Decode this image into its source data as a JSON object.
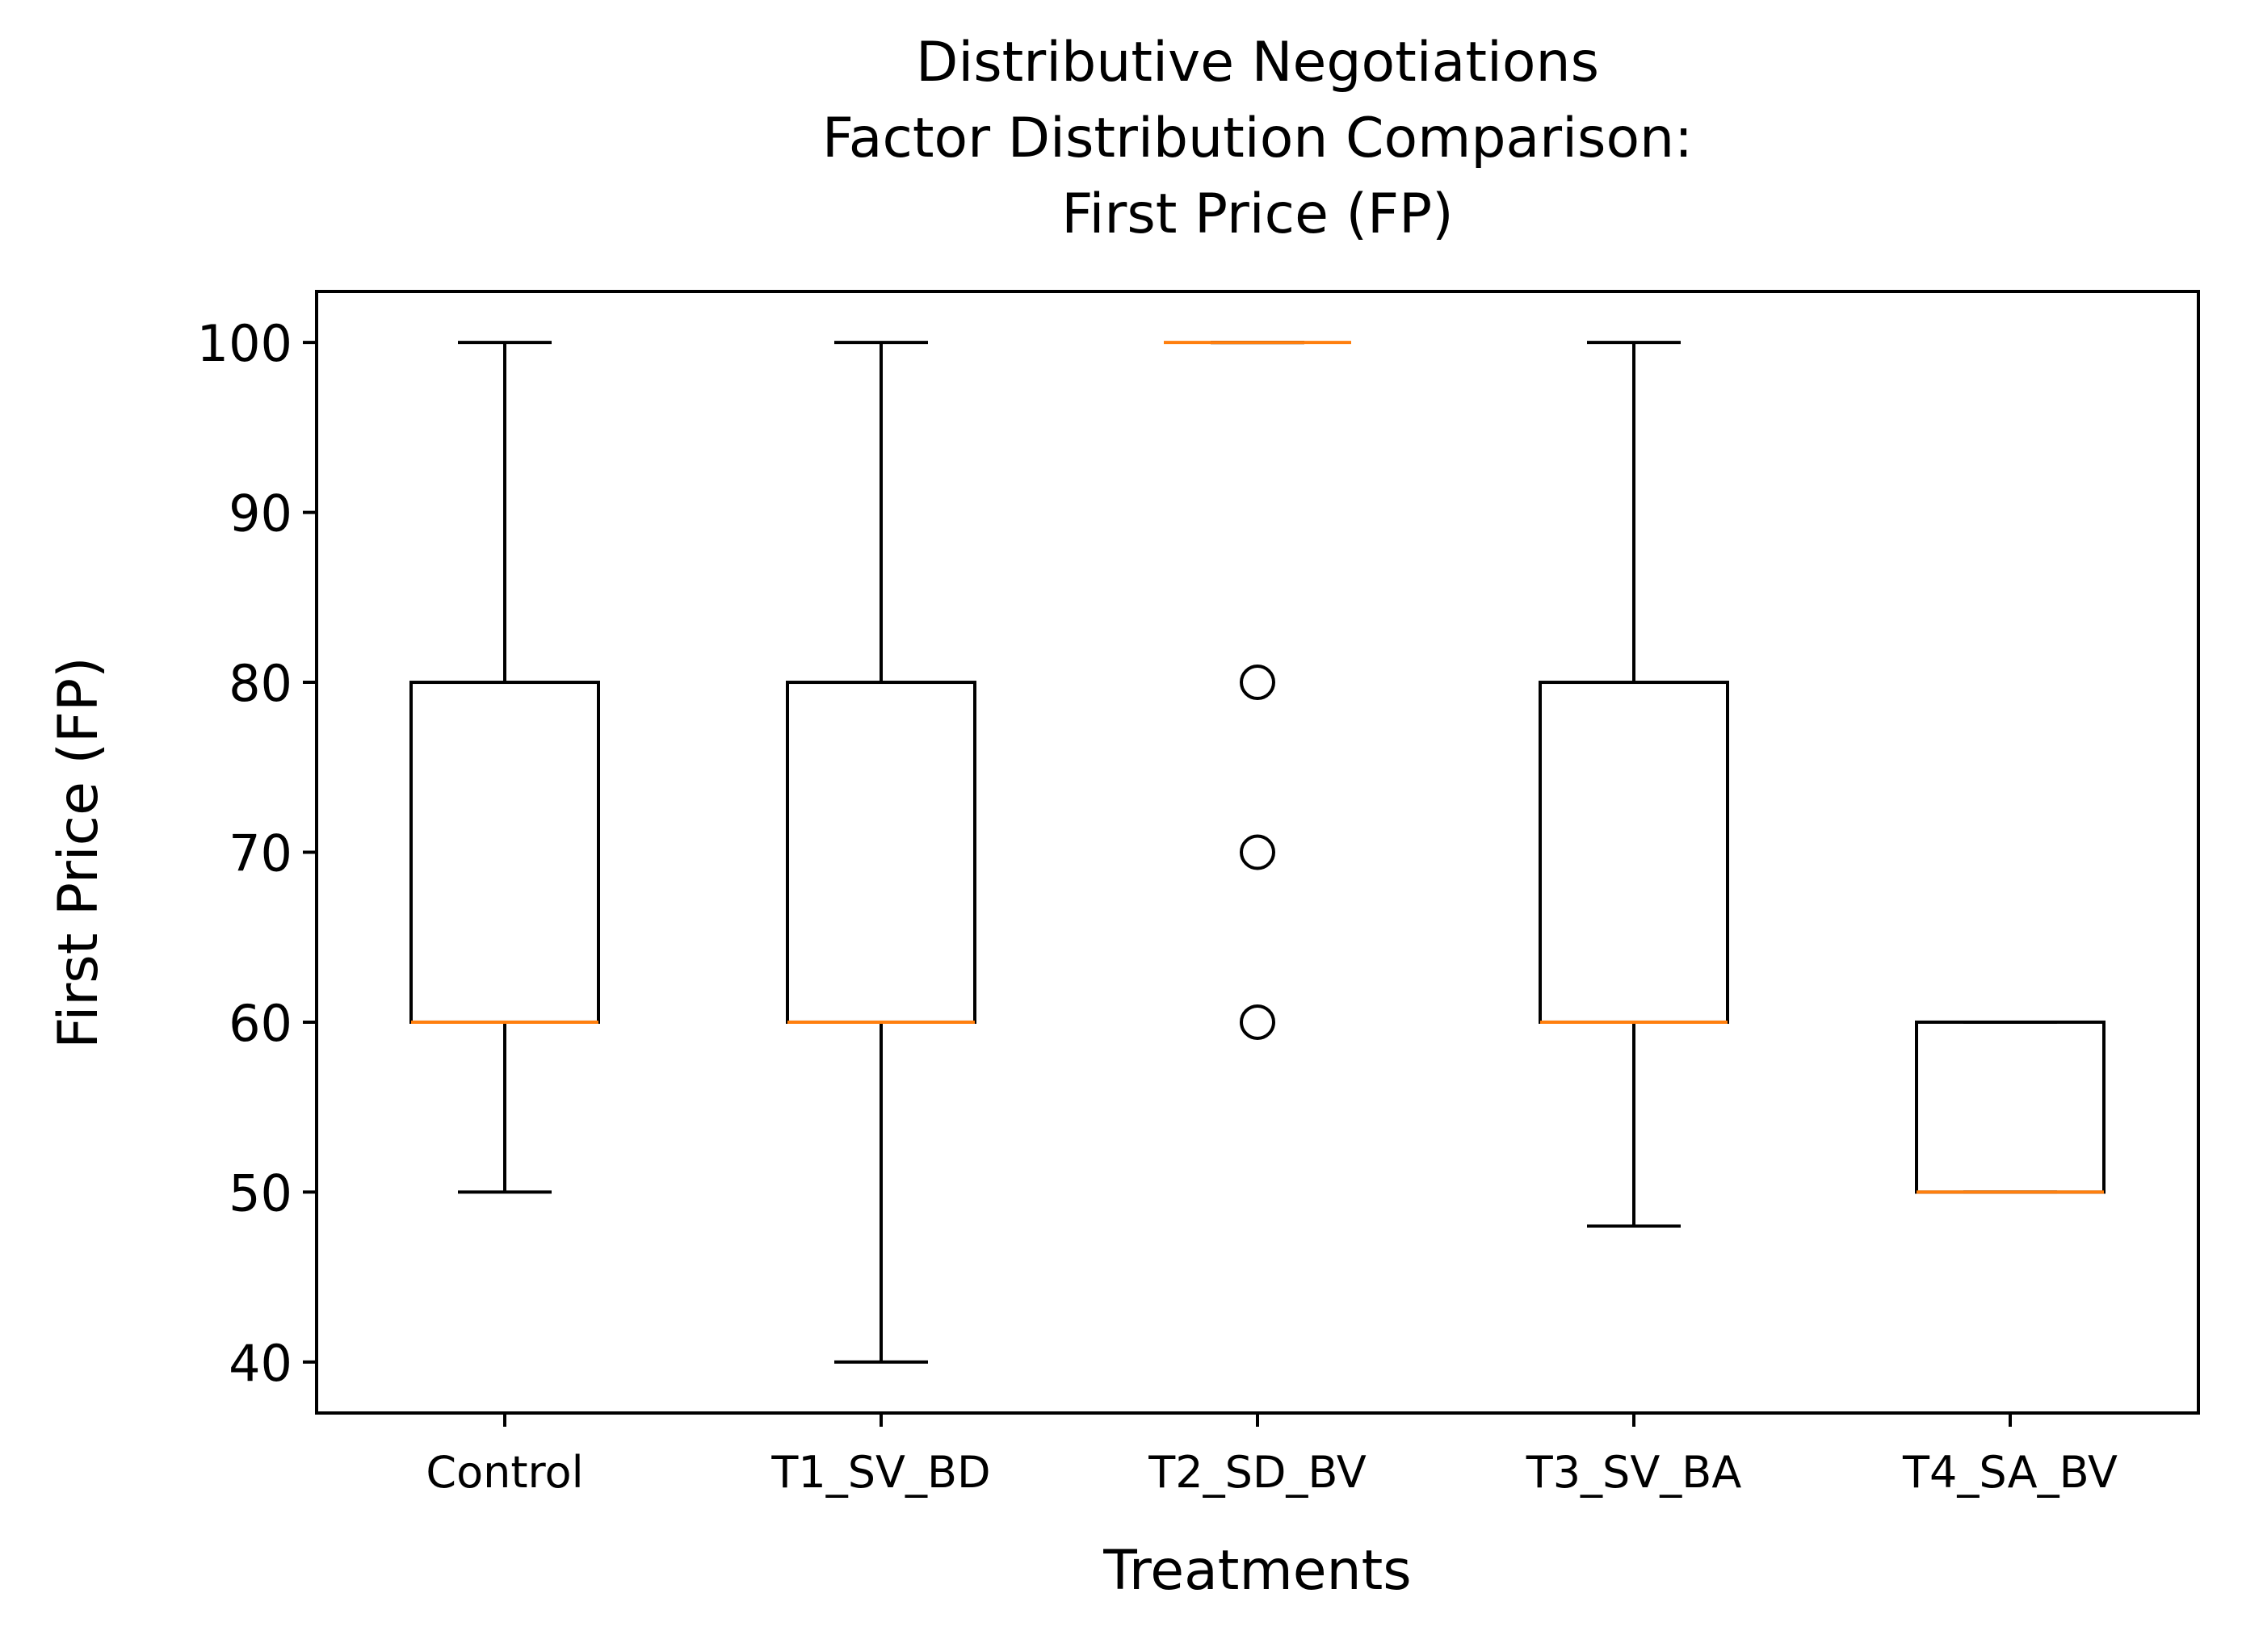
{
  "chart_data": {
    "type": "box",
    "title": [
      "Distributive Negotiations",
      "Factor Distribution Comparison:",
      "First Price (FP)"
    ],
    "xlabel": "Treatments",
    "ylabel": "First Price (FP)",
    "ylim": [
      37,
      103
    ],
    "yticks": [
      40,
      50,
      60,
      70,
      80,
      90,
      100
    ],
    "ytick_labels": [
      "40",
      "50",
      "60",
      "70",
      "80",
      "90",
      "100"
    ],
    "categories": [
      "Control",
      "T1_SV_BD",
      "T2_SD_BV",
      "T3_SV_BA",
      "T4_SA_BV"
    ],
    "grid": false,
    "boxes": [
      {
        "whislo": 50,
        "q1": 60,
        "med": 60,
        "q3": 80,
        "whishi": 100,
        "fliers": []
      },
      {
        "whislo": 40,
        "q1": 60,
        "med": 60,
        "q3": 80,
        "whishi": 100,
        "fliers": []
      },
      {
        "whislo": 100,
        "q1": 100,
        "med": 100,
        "q3": 100,
        "whishi": 100,
        "fliers": [
          80,
          70,
          60
        ]
      },
      {
        "whislo": 48,
        "q1": 60,
        "med": 60,
        "q3": 80,
        "whishi": 100,
        "fliers": []
      },
      {
        "whislo": 50,
        "q1": 50,
        "med": 50,
        "q3": 60,
        "whishi": 60,
        "fliers": []
      }
    ],
    "colors": {
      "box": "#000000",
      "median": "#ff7f0e",
      "flier": "#000000"
    }
  }
}
